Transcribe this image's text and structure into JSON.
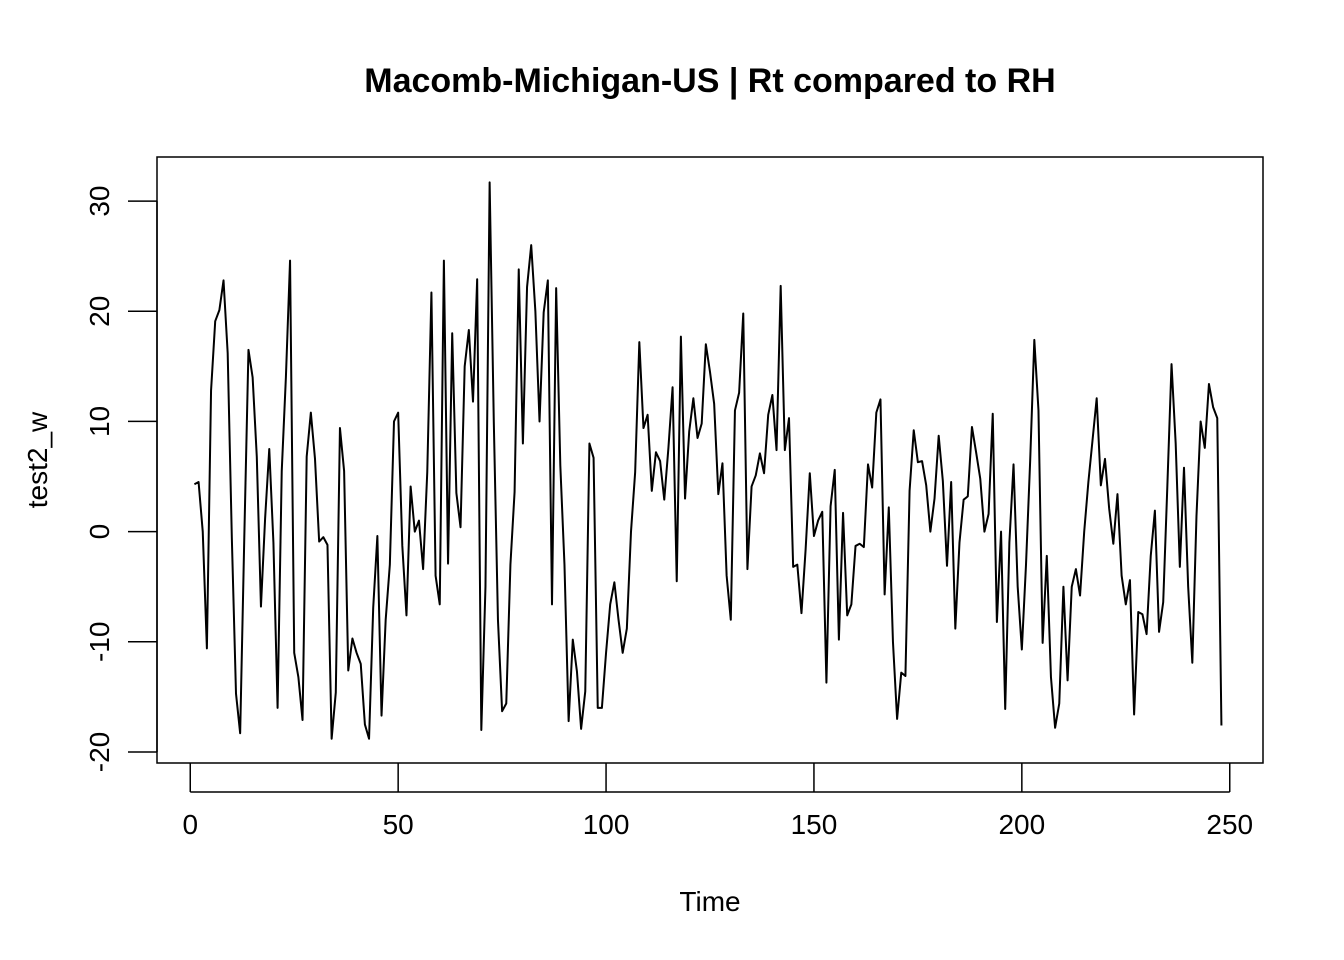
{
  "chart_data": {
    "type": "line",
    "title": "Macomb-Michigan-US | Rt compared to RH",
    "xlabel": "Time",
    "ylabel": "test2_w",
    "xlim": [
      -8,
      258
    ],
    "ylim": [
      -21,
      34
    ],
    "x_ticks": [
      0,
      50,
      100,
      150,
      200,
      250
    ],
    "y_ticks": [
      -20,
      -10,
      0,
      10,
      20,
      30
    ],
    "x_tick_labels": [
      "0",
      "50",
      "100",
      "150",
      "200",
      "250"
    ],
    "y_tick_labels": [
      "-20",
      "-10",
      "0",
      "10",
      "20",
      "30"
    ],
    "grid": false,
    "colors": {
      "line": "#000000",
      "frame": "#000000",
      "background": "#ffffff"
    },
    "series": [
      {
        "x_start": 1,
        "values": [
          4.3,
          4.5,
          0.0,
          -10.6,
          12.8,
          19.1,
          20.1,
          22.8,
          16.2,
          -0.6,
          -14.7,
          -18.3,
          -0.4,
          16.5,
          14.0,
          6.8,
          -6.8,
          1.2,
          7.5,
          -1.0,
          -16.0,
          5.5,
          14.0,
          24.6,
          -11.0,
          -13.2,
          -17.1,
          6.8,
          10.8,
          6.6,
          -0.9,
          -0.5,
          -1.2,
          -18.8,
          -14.6,
          9.4,
          5.5,
          -12.6,
          -9.7,
          -11.0,
          -12.0,
          -17.5,
          -18.8,
          -6.9,
          -0.4,
          -16.7,
          -8.0,
          -3.0,
          10.0,
          10.8,
          -1.3,
          -7.6,
          4.1,
          0.0,
          1.0,
          -3.4,
          5.4,
          21.7,
          -4.0,
          -6.6,
          24.6,
          -2.9,
          18.0,
          3.5,
          0.4,
          15.0,
          18.3,
          11.8,
          22.9,
          -18.0,
          -5.0,
          31.7,
          10.0,
          -8.0,
          -16.3,
          -15.6,
          -3.0,
          3.6,
          23.8,
          8.0,
          22.2,
          26.0,
          20.0,
          10.0,
          19.9,
          22.8,
          -6.6,
          22.1,
          6.0,
          -3.0,
          -17.2,
          -9.8,
          -12.7,
          -17.9,
          -14.5,
          8.0,
          6.7,
          -16.0,
          -16.0,
          -11.0,
          -6.6,
          -4.6,
          -8.0,
          -11.0,
          -8.8,
          0.0,
          5.4,
          17.2,
          9.4,
          10.6,
          3.7,
          7.2,
          6.4,
          2.9,
          7.6,
          13.1,
          -4.5,
          17.7,
          3.0,
          9.1,
          12.1,
          8.5,
          9.8,
          17.0,
          14.5,
          11.6,
          3.4,
          6.2,
          -4.0,
          -8.0,
          11.0,
          12.6,
          19.8,
          -3.4,
          4.1,
          5.1,
          7.1,
          5.3,
          10.6,
          12.4,
          7.4,
          22.3,
          7.4,
          10.3,
          -3.2,
          -3.0,
          -7.4,
          -1.6,
          5.3,
          -0.4,
          1.0,
          1.8,
          -13.7,
          2.3,
          5.6,
          -9.8,
          1.7,
          -7.6,
          -6.6,
          -1.3,
          -1.1,
          -1.4,
          6.1,
          4.0,
          10.8,
          12.0,
          -5.7,
          2.2,
          -10.0,
          -17.0,
          -12.8,
          -13.1,
          3.7,
          9.2,
          6.3,
          6.4,
          4.2,
          0.0,
          3.0,
          8.7,
          4.6,
          -3.1,
          4.5,
          -8.8,
          -1.0,
          2.9,
          3.2,
          9.5,
          7.2,
          4.8,
          0.0,
          1.6,
          10.7,
          -8.2,
          0.0,
          -16.1,
          -1.0,
          6.1,
          -5.0,
          -10.7,
          -3.0,
          6.4,
          17.4,
          11.0,
          -10.1,
          -2.2,
          -13.2,
          -17.8,
          -15.6,
          -5.0,
          -13.5,
          -5.0,
          -3.4,
          -5.8,
          0.0,
          4.5,
          8.3,
          12.1,
          4.2,
          6.6,
          2.1,
          -1.1,
          3.4,
          -4.0,
          -6.6,
          -4.4,
          -16.6,
          -7.3,
          -7.5,
          -9.3,
          -2.2,
          1.9,
          -9.1,
          -6.4,
          4.2,
          15.2,
          8.0,
          -3.2,
          5.8,
          -5.0,
          -11.9,
          1.4,
          10.0,
          7.6,
          13.4,
          11.3,
          10.3,
          -17.6
        ]
      }
    ]
  }
}
